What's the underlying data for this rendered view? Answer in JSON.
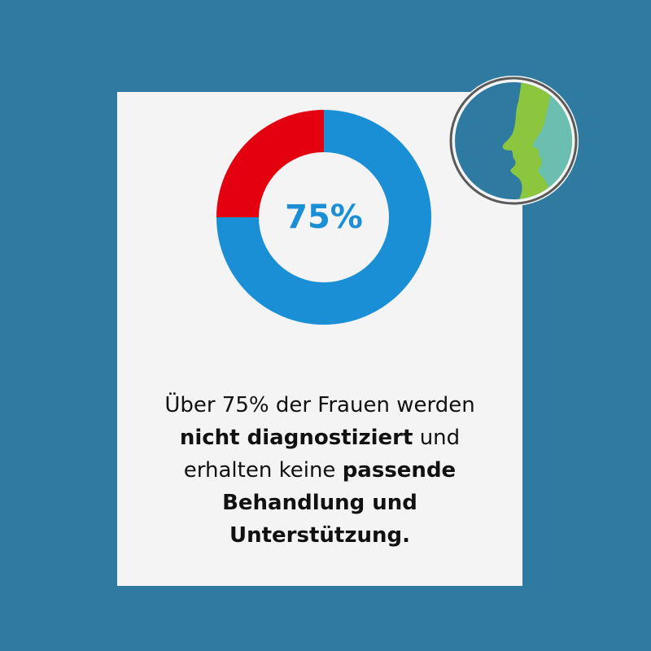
{
  "chart_data": {
    "type": "pie",
    "slices": [
      {
        "label": "",
        "value": 75,
        "color": "#1a8fd6"
      },
      {
        "label": "",
        "value": 25,
        "color": "#e3000f"
      }
    ],
    "center_label": "75%"
  },
  "caption": {
    "line1": "Über 75% der Frauen werden",
    "line2_bold": "nicht diagnostiziert",
    "line2_rest": " und",
    "line3_regular": "erhalten keine ",
    "line3_bold": "passende",
    "line4_bold": "Behandlung und",
    "line5_bold": "Unterstützung."
  },
  "colors": {
    "background": "#2f7aa0",
    "card": "#f4f4f4",
    "accent_blue": "#1a8fd6",
    "accent_red": "#e3000f"
  },
  "logo": {
    "icon": "faces-profile-logo-icon"
  }
}
